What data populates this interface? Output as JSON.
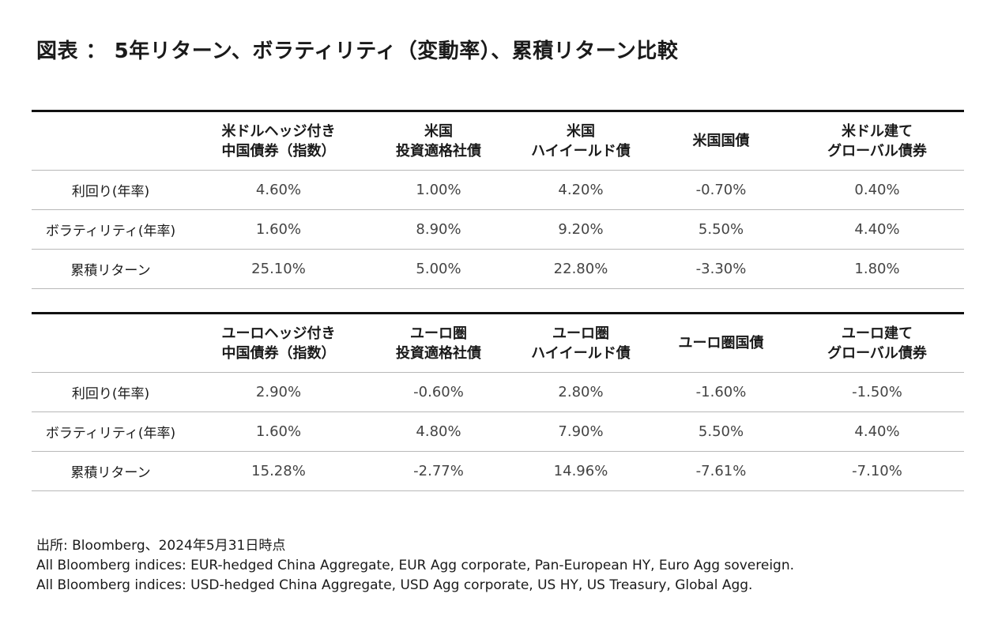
{
  "title": "図表 ： 5年リターン、ボラティリティ（変動率）、累積リターン比較",
  "tables": [
    {
      "headers": [
        [
          "米ドルヘッジ付き",
          "中国債券（指数）"
        ],
        [
          "米国",
          "投資適格社債"
        ],
        [
          "米国",
          "ハイイールド債"
        ],
        [
          "米国国債"
        ],
        [
          "米ドル建て",
          "グローバル債券"
        ]
      ],
      "rows": [
        {
          "label": "利回り(年率)",
          "values": [
            "4.60%",
            "1.00%",
            "4.20%",
            "-0.70%",
            "0.40%"
          ]
        },
        {
          "label": "ボラティリティ(年率)",
          "values": [
            "1.60%",
            "8.90%",
            "9.20%",
            "5.50%",
            "4.40%"
          ]
        },
        {
          "label": "累積リターン",
          "values": [
            "25.10%",
            "5.00%",
            "22.80%",
            "-3.30%",
            "1.80%"
          ]
        }
      ]
    },
    {
      "headers": [
        [
          "ユーロヘッジ付き",
          "中国債券（指数）"
        ],
        [
          "ユーロ圏",
          "投資適格社債"
        ],
        [
          "ユーロ圏",
          "ハイイールド債"
        ],
        [
          "ユーロ圏国債"
        ],
        [
          "ユーロ建て",
          "グローバル債券"
        ]
      ],
      "rows": [
        {
          "label": "利回り(年率)",
          "values": [
            "2.90%",
            "-0.60%",
            "2.80%",
            "-1.60%",
            "-1.50%"
          ]
        },
        {
          "label": "ボラティリティ(年率)",
          "values": [
            "1.60%",
            "4.80%",
            "7.90%",
            "5.50%",
            "4.40%"
          ]
        },
        {
          "label": "累積リターン",
          "values": [
            "15.28%",
            "-2.77%",
            "14.96%",
            "-7.61%",
            "-7.10%"
          ]
        }
      ]
    }
  ],
  "notes": [
    "出所: Bloomberg、2024年5月31日時点",
    "All Bloomberg indices: EUR-hedged China Aggregate, EUR Agg corporate, Pan-European HY, Euro Agg sovereign.",
    "All Bloomberg indices: USD-hedged China Aggregate, USD Agg corporate, US HY, US Treasury, Global Agg."
  ]
}
